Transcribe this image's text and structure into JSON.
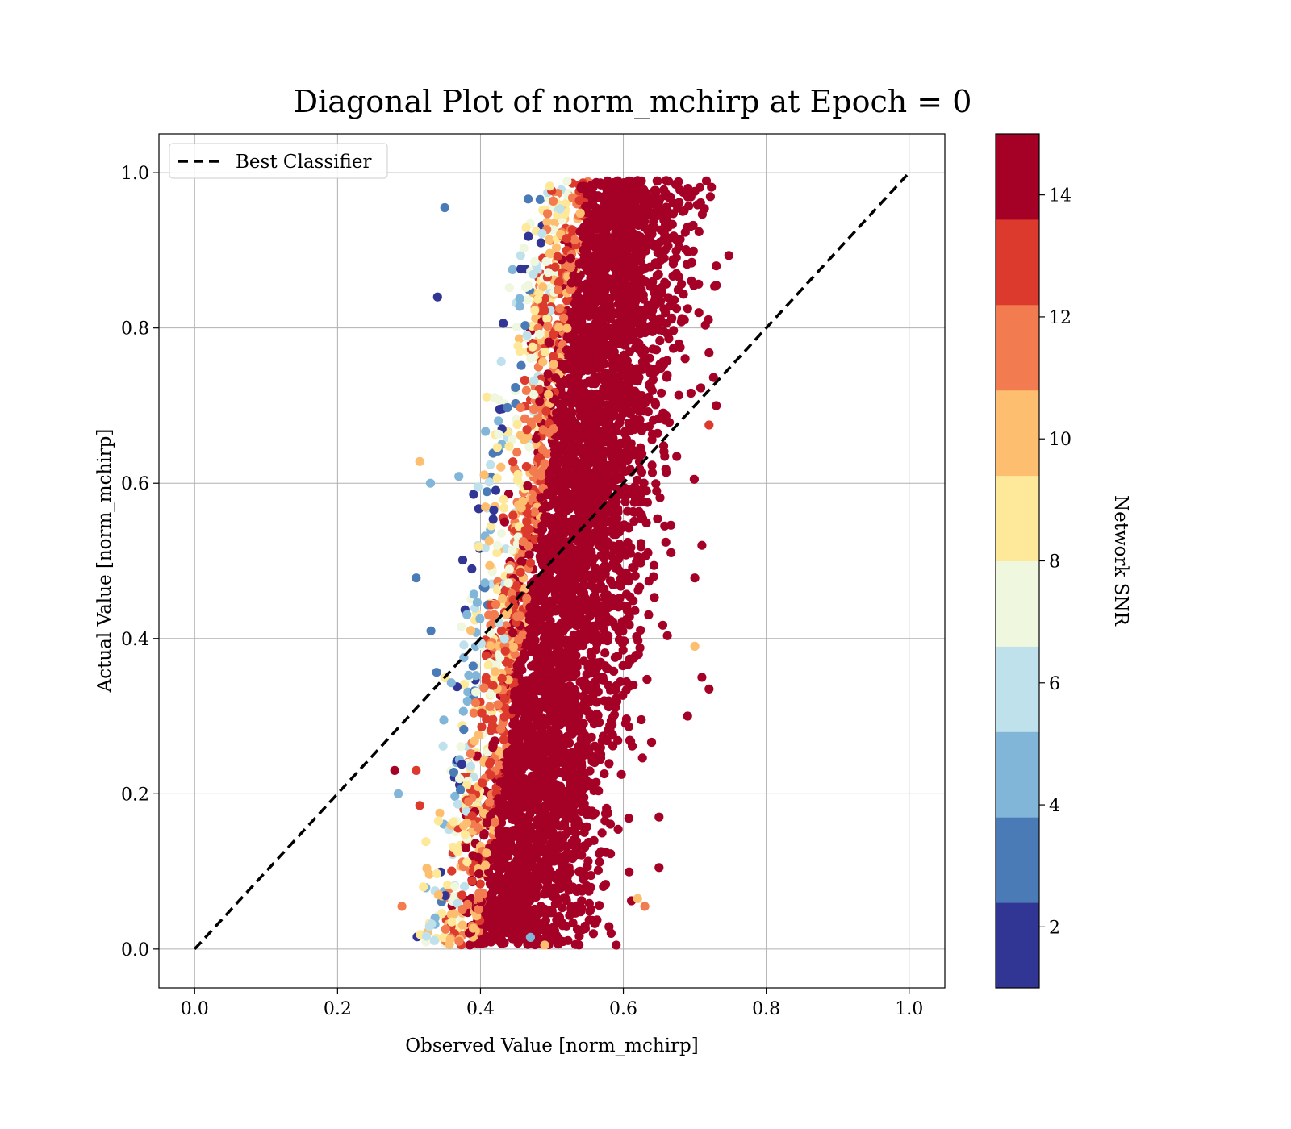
{
  "chart_data": {
    "type": "scatter",
    "title": "Diagonal Plot of norm_mchirp at Epoch = 0",
    "xlabel": "Observed Value [norm_mchirp]",
    "ylabel": "Actual Value [norm_mchirp]",
    "xlim": [
      -0.05,
      1.05
    ],
    "ylim": [
      -0.05,
      1.05
    ],
    "xticks": [
      "0.0",
      "0.2",
      "0.4",
      "0.6",
      "0.8",
      "1.0"
    ],
    "yticks": [
      "0.0",
      "0.2",
      "0.4",
      "0.6",
      "0.8",
      "1.0"
    ],
    "grid": true,
    "legend": {
      "placement": "upper-left",
      "entries": [
        "Best Classifier"
      ]
    },
    "reference_line": {
      "name": "Best Classifier",
      "style": "dashed",
      "color": "#000000",
      "x": [
        0.0,
        1.0
      ],
      "y": [
        0.0,
        1.0
      ]
    },
    "point_cloud": {
      "description_of_extent": "points concentrated around x in [0.35, 0.72], y in [0.0, 1.0]",
      "x_range": [
        0.28,
        0.73
      ],
      "y_range": [
        0.005,
        0.99
      ],
      "dominant_color_value": 14
    },
    "sample_points": [
      {
        "x": 0.28,
        "y": 0.23,
        "c": 14
      },
      {
        "x": 0.285,
        "y": 0.2,
        "c": 5
      },
      {
        "x": 0.29,
        "y": 0.055,
        "c": 11
      },
      {
        "x": 0.31,
        "y": 0.478,
        "c": 3
      },
      {
        "x": 0.315,
        "y": 0.628,
        "c": 10
      },
      {
        "x": 0.31,
        "y": 0.23,
        "c": 13
      },
      {
        "x": 0.315,
        "y": 0.185,
        "c": 13
      },
      {
        "x": 0.32,
        "y": 0.08,
        "c": 9
      },
      {
        "x": 0.33,
        "y": 0.6,
        "c": 4
      },
      {
        "x": 0.34,
        "y": 0.84,
        "c": 1
      },
      {
        "x": 0.35,
        "y": 0.955,
        "c": 3
      },
      {
        "x": 0.36,
        "y": 0.035,
        "c": 9
      },
      {
        "x": 0.37,
        "y": 0.01,
        "c": 12
      },
      {
        "x": 0.59,
        "y": 0.005,
        "c": 14
      },
      {
        "x": 0.62,
        "y": 0.99,
        "c": 14
      },
      {
        "x": 0.66,
        "y": 0.99,
        "c": 14
      },
      {
        "x": 0.69,
        "y": 0.93,
        "c": 14
      },
      {
        "x": 0.73,
        "y": 0.88,
        "c": 14
      },
      {
        "x": 0.73,
        "y": 0.855,
        "c": 14
      },
      {
        "x": 0.72,
        "y": 0.768,
        "c": 14
      },
      {
        "x": 0.73,
        "y": 0.7,
        "c": 14
      },
      {
        "x": 0.72,
        "y": 0.675,
        "c": 13
      },
      {
        "x": 0.71,
        "y": 0.52,
        "c": 14
      },
      {
        "x": 0.7,
        "y": 0.478,
        "c": 14
      },
      {
        "x": 0.7,
        "y": 0.39,
        "c": 10
      },
      {
        "x": 0.71,
        "y": 0.35,
        "c": 14
      },
      {
        "x": 0.72,
        "y": 0.335,
        "c": 14
      },
      {
        "x": 0.69,
        "y": 0.3,
        "c": 14
      },
      {
        "x": 0.65,
        "y": 0.17,
        "c": 14
      },
      {
        "x": 0.65,
        "y": 0.105,
        "c": 14
      },
      {
        "x": 0.62,
        "y": 0.065,
        "c": 10
      },
      {
        "x": 0.63,
        "y": 0.055,
        "c": 12
      },
      {
        "x": 0.47,
        "y": 0.015,
        "c": 4
      },
      {
        "x": 0.49,
        "y": 0.005,
        "c": 10
      }
    ],
    "colorbar": {
      "label": "Network SNR",
      "range": [
        1,
        15
      ],
      "ticks": [
        "2",
        "4",
        "6",
        "8",
        "10",
        "12",
        "14"
      ],
      "levels": [
        1,
        2.4,
        3.8,
        5.2,
        6.6,
        8.0,
        9.4,
        10.8,
        12.2,
        13.6,
        15
      ],
      "colors": [
        "#313695",
        "#4a7bb7",
        "#82b6d8",
        "#bfe1ec",
        "#eff8de",
        "#fee89a",
        "#fdbe6f",
        "#f27b50",
        "#db3a2d",
        "#a50026"
      ]
    }
  }
}
